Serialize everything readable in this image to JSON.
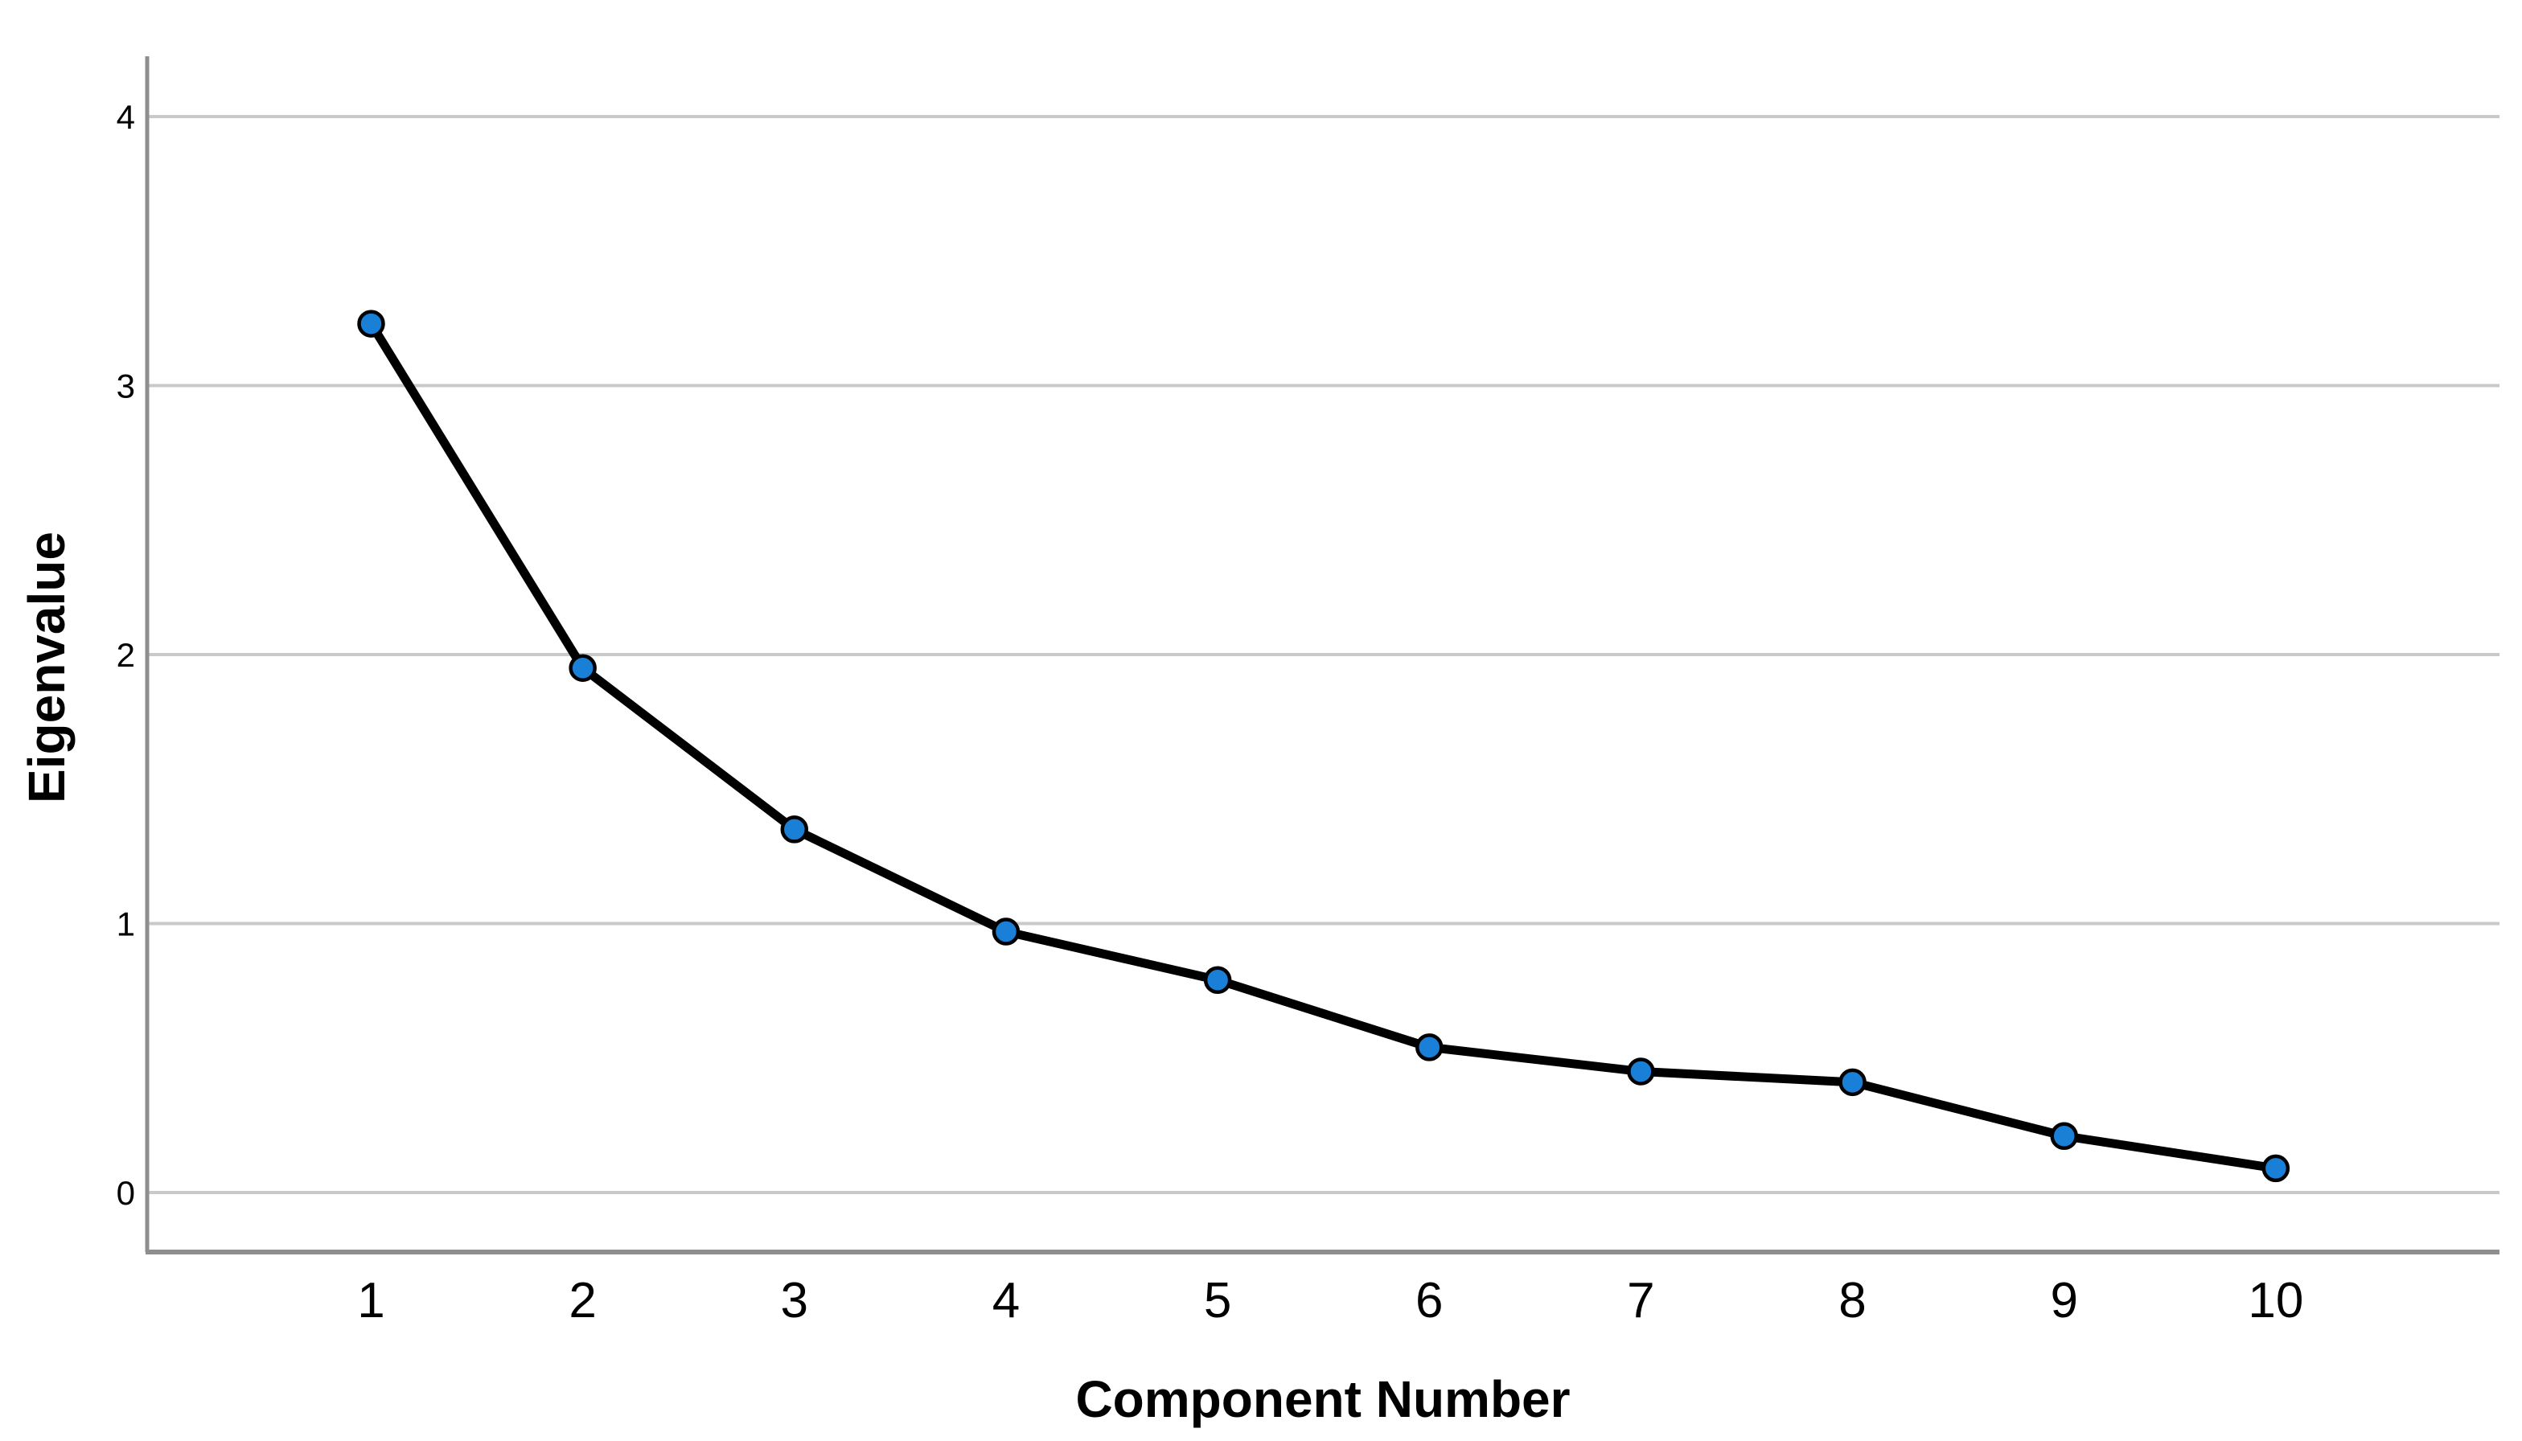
{
  "chart_data": {
    "type": "line",
    "title": "",
    "xlabel": "Component Number",
    "ylabel": "Eigenvalue",
    "categories": [
      1,
      2,
      3,
      4,
      5,
      6,
      7,
      8,
      9,
      10
    ],
    "series": [
      {
        "name": "Eigenvalue",
        "values": [
          3.23,
          1.95,
          1.35,
          0.97,
          0.79,
          0.54,
          0.45,
          0.41,
          0.21,
          0.09
        ]
      }
    ],
    "x_tick_labels": [
      "1",
      "2",
      "3",
      "4",
      "5",
      "6",
      "7",
      "8",
      "9",
      "10"
    ],
    "y_ticks": [
      0,
      1,
      2,
      3,
      4
    ],
    "y_tick_labels": [
      "0",
      "1",
      "2",
      "3",
      "4"
    ],
    "ylim": [
      -0.22,
      4.22
    ],
    "grid": "horizontal-only",
    "legend": "none",
    "marker": "filled-circle",
    "colors": {
      "line": "#000000",
      "marker_fill": "#1a7fd6",
      "marker_stroke": "#000000",
      "gridline": "#c9c9c9",
      "axis_line": "#8e8e8e",
      "text": "#000000",
      "background": "#ffffff"
    }
  }
}
